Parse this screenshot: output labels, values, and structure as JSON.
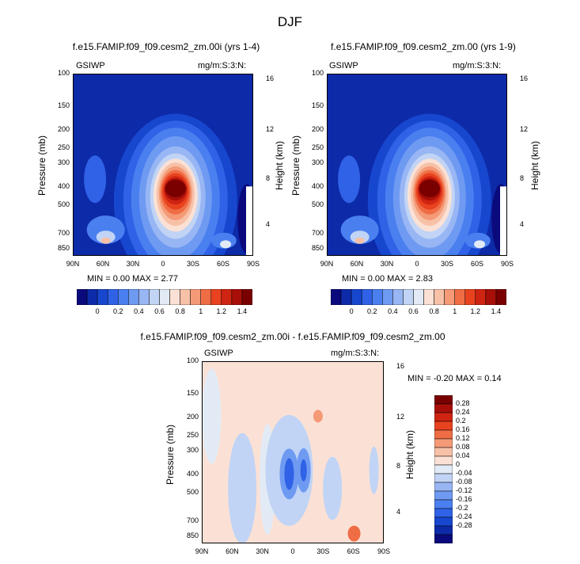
{
  "page": {
    "suptitle": "DJF"
  },
  "colors": {
    "scale12": [
      "#0a0a7d",
      "#0d2aa8",
      "#1747cf",
      "#2f62e6",
      "#4a7ff0",
      "#6f9af2",
      "#98b6f4",
      "#c1d4f5",
      "#e2ebf5",
      "#fbe1d5",
      "#f7c1a8",
      "#f49a77",
      "#ef6d45",
      "#e8421f",
      "#cf2412",
      "#a80f08",
      "#7a0000"
    ],
    "diff": [
      "#0a0a7d",
      "#0d2aa8",
      "#1747cf",
      "#2f62e6",
      "#4a7ff0",
      "#6f9af2",
      "#98b6f4",
      "#c1d4f5",
      "#e2ebf5",
      "#fbe1d5",
      "#f7c1a8",
      "#f49a77",
      "#ef6d45",
      "#e8421f",
      "#cf2412",
      "#a80f08",
      "#7a0000"
    ]
  },
  "chart_data": [
    {
      "type": "heatmap",
      "title": "f.e15.FAMIP.f09_f09.cesm2_zm.00i (yrs 1-4)",
      "left_label": "GSIWP",
      "right_label": "mg/m:S:3:N:",
      "ylabel": "Pressure (mb)",
      "y2label": "Height (km)",
      "xticks": [
        "90N",
        "60N",
        "30N",
        "0",
        "30S",
        "60S",
        "90S"
      ],
      "yticks": [
        "100",
        "150",
        "200",
        "250",
        "300",
        "400",
        "500",
        "700",
        "850"
      ],
      "y2ticks": [
        "16",
        "12",
        "8",
        "4"
      ],
      "stats": "MIN =  0.00  MAX =  2.77",
      "colorbar_levels": [
        "0",
        "0.2",
        "0.4",
        "0.6",
        "0.8",
        "1",
        "1.2",
        "1.4"
      ]
    },
    {
      "type": "heatmap",
      "title": "f.e15.FAMIP.f09_f09.cesm2_zm.00 (yrs 1-9)",
      "left_label": "GSIWP",
      "right_label": "mg/m:S:3:N:",
      "ylabel": "Pressure (mb)",
      "y2label": "Height (km)",
      "xticks": [
        "90N",
        "60N",
        "30N",
        "0",
        "30S",
        "60S",
        "90S"
      ],
      "yticks": [
        "100",
        "150",
        "200",
        "250",
        "300",
        "400",
        "500",
        "700",
        "850"
      ],
      "y2ticks": [
        "16",
        "12",
        "8",
        "4"
      ],
      "stats": "MIN =  0.00  MAX =  2.83",
      "colorbar_levels": [
        "0",
        "0.2",
        "0.4",
        "0.6",
        "0.8",
        "1",
        "1.2",
        "1.4"
      ]
    },
    {
      "type": "heatmap",
      "title": "f.e15.FAMIP.f09_f09.cesm2_zm.00i - f.e15.FAMIP.f09_f09.cesm2_zm.00",
      "left_label": "GSIWP",
      "right_label": "mg/m:S:3:N:",
      "ylabel": "Pressure (mb)",
      "y2label": "Height (km)",
      "xticks": [
        "90N",
        "60N",
        "30N",
        "0",
        "30S",
        "60S",
        "90S"
      ],
      "yticks": [
        "100",
        "150",
        "200",
        "250",
        "300",
        "400",
        "500",
        "700",
        "850"
      ],
      "y2ticks": [
        "16",
        "12",
        "8",
        "4"
      ],
      "stats": "MIN = -0.20  MAX =  0.14",
      "colorbar_levels": [
        "0.28",
        "0.24",
        "0.2",
        "0.16",
        "0.12",
        "0.08",
        "0.04",
        "0",
        "-0.04",
        "-0.08",
        "-0.12",
        "-0.16",
        "-0.2",
        "-0.24",
        "-0.28"
      ]
    }
  ]
}
